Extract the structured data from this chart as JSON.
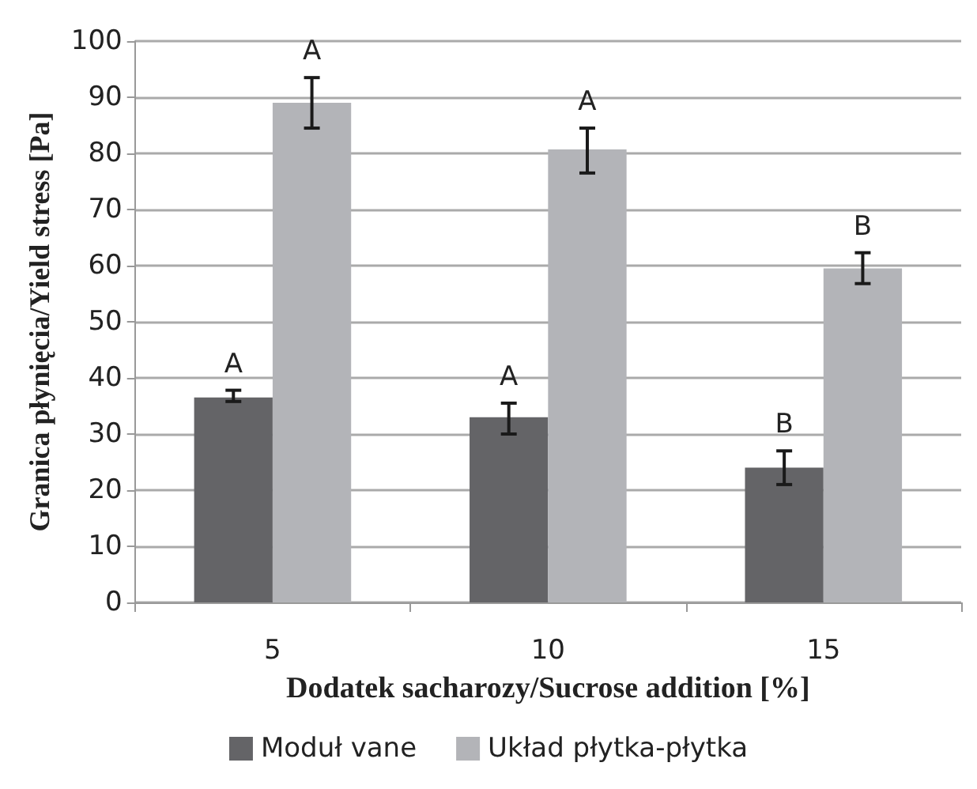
{
  "chart_data": {
    "type": "bar",
    "xlabel": "Dodatek sacharozy/Sucrose addition [%]",
    "ylabel": "Granica płynięcia/Yield stress [Pa]",
    "categories": [
      "5",
      "10",
      "15"
    ],
    "series": [
      {
        "name": "Moduł vane",
        "color": "#646467",
        "values": [
          36.5,
          33,
          24
        ],
        "errors": [
          [
            35.8,
            37.8
          ],
          [
            30,
            35.5
          ],
          [
            21,
            27
          ]
        ],
        "value_labels": [
          "A",
          "A",
          "B"
        ]
      },
      {
        "name": "Układ płytka-płytka",
        "color": "#b3b4b8",
        "values": [
          89,
          80.7,
          59.5
        ],
        "errors": [
          [
            84.5,
            93.5
          ],
          [
            76.5,
            84.5
          ],
          [
            56.8,
            62.3
          ]
        ],
        "value_labels": [
          "A",
          "A",
          "B"
        ]
      }
    ],
    "ylim": [
      0,
      100
    ],
    "yticks": [
      0,
      10,
      20,
      30,
      40,
      50,
      60,
      70,
      80,
      90,
      100
    ],
    "grid": "y",
    "legend": "bottom"
  }
}
